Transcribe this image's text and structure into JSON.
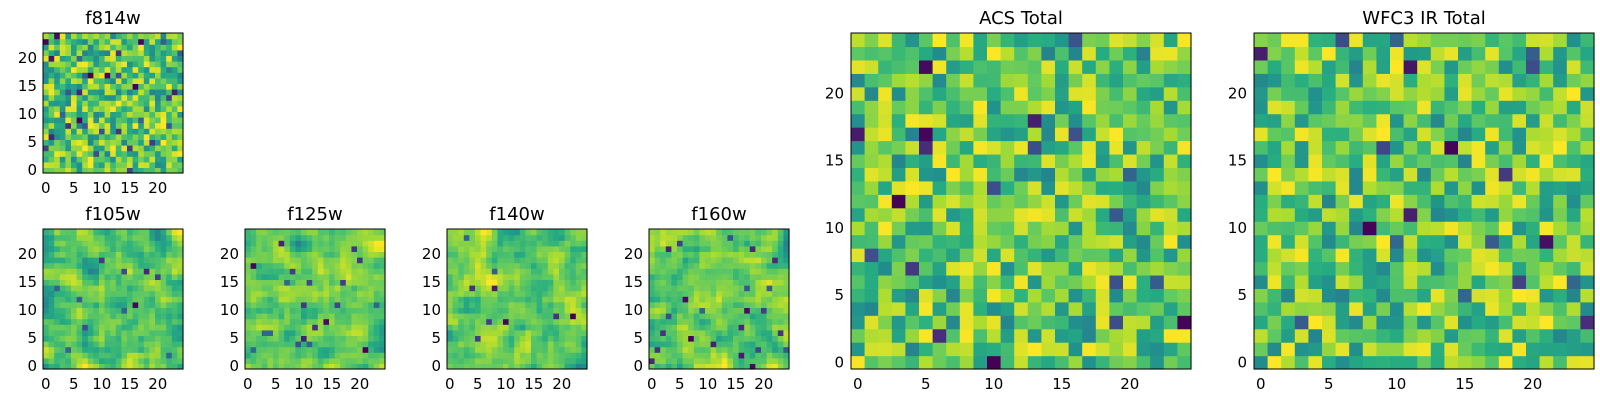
{
  "chart_data": [
    {
      "type": "heatmap",
      "title": "f814w",
      "xticks": [
        "0",
        "5",
        "10",
        "15",
        "20"
      ],
      "yticks": [
        "0",
        "5",
        "10",
        "15",
        "20"
      ],
      "xlim": [
        0,
        25
      ],
      "ylim": [
        0,
        25
      ],
      "grid_size": 25,
      "colormap": "viridis",
      "seed": 11,
      "style": "speckle"
    },
    {
      "type": "heatmap",
      "title": "f105w",
      "xticks": [
        "0",
        "5",
        "10",
        "15",
        "20"
      ],
      "yticks": [
        "0",
        "5",
        "10",
        "15",
        "20"
      ],
      "xlim": [
        0,
        25
      ],
      "ylim": [
        0,
        25
      ],
      "grid_size": 25,
      "colormap": "viridis",
      "seed": 23,
      "style": "smooth"
    },
    {
      "type": "heatmap",
      "title": "f125w",
      "xticks": [
        "0",
        "5",
        "10",
        "15",
        "20"
      ],
      "yticks": [
        "0",
        "5",
        "10",
        "15",
        "20"
      ],
      "xlim": [
        0,
        25
      ],
      "ylim": [
        0,
        25
      ],
      "grid_size": 25,
      "colormap": "viridis",
      "seed": 37,
      "style": "smooth"
    },
    {
      "type": "heatmap",
      "title": "f140w",
      "xticks": [
        "0",
        "5",
        "10",
        "15",
        "20"
      ],
      "yticks": [
        "0",
        "5",
        "10",
        "15",
        "20"
      ],
      "xlim": [
        0,
        25
      ],
      "ylim": [
        0,
        25
      ],
      "grid_size": 25,
      "colormap": "viridis",
      "seed": 41,
      "style": "smooth"
    },
    {
      "type": "heatmap",
      "title": "f160w",
      "xticks": [
        "0",
        "5",
        "10",
        "15",
        "20"
      ],
      "yticks": [
        "0",
        "5",
        "10",
        "15",
        "20"
      ],
      "xlim": [
        0,
        25
      ],
      "ylim": [
        0,
        25
      ],
      "grid_size": 25,
      "colormap": "viridis",
      "seed": 53,
      "style": "smooth"
    },
    {
      "type": "heatmap",
      "title": "ACS Total",
      "xticks": [
        "0",
        "5",
        "10",
        "15",
        "20"
      ],
      "yticks": [
        "0",
        "5",
        "10",
        "15",
        "20"
      ],
      "xlim": [
        0,
        25
      ],
      "ylim": [
        0,
        25
      ],
      "grid_size": 25,
      "colormap": "viridis",
      "seed": 67,
      "style": "pixel"
    },
    {
      "type": "heatmap",
      "title": "WFC3 IR Total",
      "xticks": [
        "0",
        "5",
        "10",
        "15",
        "20"
      ],
      "yticks": [
        "0",
        "5",
        "10",
        "15",
        "20"
      ],
      "xlim": [
        0,
        25
      ],
      "ylim": [
        0,
        25
      ],
      "grid_size": 25,
      "colormap": "viridis",
      "seed": 79,
      "style": "pixel"
    }
  ]
}
